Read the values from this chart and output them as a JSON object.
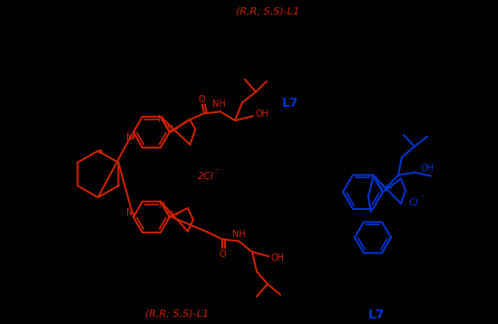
{
  "title_top": "(R,R; S,S)-L1",
  "label_L7_top": "L7",
  "label_L1_bottom": "(R,R; S,S)-L1",
  "label_L7_bottom": "L7",
  "red_color": "#CC2200",
  "blue_color": "#0033CC",
  "bg_color": "#000000",
  "text_2Cl": "2Cl",
  "text_Cl": "Cl",
  "fig_width": 5.49,
  "fig_height": 3.58,
  "dpi": 100
}
